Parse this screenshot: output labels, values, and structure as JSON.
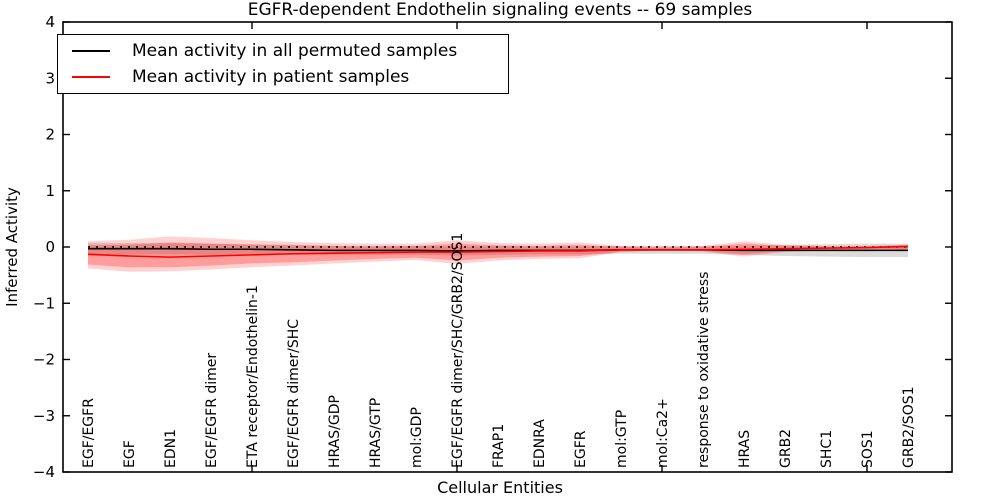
{
  "chart_data": {
    "type": "line",
    "title": "EGFR-dependent Endothelin signaling events -- 69 samples",
    "xlabel": "Cellular Entities",
    "ylabel": "Inferred Activity",
    "ylim": [
      -4,
      4
    ],
    "ytick_values": [
      4,
      3,
      2,
      1,
      0,
      -1,
      -2,
      -3,
      -4
    ],
    "ytick_labels": [
      "4",
      "3",
      "2",
      "1",
      "0",
      "−1",
      "−2",
      "−3",
      "−4"
    ],
    "x_major_tick_indices": [
      4,
      9,
      14,
      19
    ],
    "grid": false,
    "legend_position": "upper-left",
    "background_color": "#ffffff",
    "axis_color": "#000000",
    "categories": [
      "EGF/EGFR",
      "EGF",
      "EDN1",
      "EGF/EGFR dimer",
      "ETA receptor/Endothelin-1",
      "EGF/EGFR dimer/SHC",
      "HRAS/GDP",
      "HRAS/GTP",
      "mol:GDP",
      "EGF/EGFR dimer/SHC/GRB2/SOS1",
      "FRAP1",
      "EDNRA",
      "EGFR",
      "mol:GTP",
      "mol:Ca2+",
      "response to oxidative stress",
      "HRAS",
      "GRB2",
      "SHC1",
      "SOS1",
      "GRB2/SOS1"
    ],
    "series": [
      {
        "name": "Mean activity in all permuted samples",
        "color": "#000000",
        "style": "solid",
        "values": [
          -0.03,
          -0.03,
          -0.03,
          -0.04,
          -0.04,
          -0.05,
          -0.06,
          -0.06,
          -0.06,
          -0.07,
          -0.06,
          -0.06,
          -0.06,
          -0.05,
          -0.05,
          -0.05,
          -0.06,
          -0.06,
          -0.06,
          -0.06,
          -0.06
        ]
      },
      {
        "name": "Mean activity in patient samples",
        "color": "#ff0000",
        "style": "solid",
        "values": [
          -0.13,
          -0.16,
          -0.18,
          -0.16,
          -0.14,
          -0.12,
          -0.11,
          -0.1,
          -0.09,
          -0.09,
          -0.08,
          -0.07,
          -0.07,
          -0.05,
          -0.05,
          -0.05,
          -0.04,
          -0.03,
          -0.02,
          -0.01,
          0.01
        ]
      },
      {
        "name": "zero-reference",
        "color": "#000000",
        "style": "dotted",
        "values": [
          0,
          0,
          0,
          0,
          0,
          0,
          0,
          0,
          0,
          0,
          0,
          0,
          0,
          0,
          0,
          0,
          0,
          0,
          0,
          0,
          0
        ]
      }
    ],
    "bands": [
      {
        "name": "permuted-samples-range",
        "color": "#999999",
        "opacity": 0.35,
        "upper": [
          0.07,
          0.07,
          0.07,
          0.06,
          0.05,
          0.04,
          0.02,
          0.02,
          0.02,
          0.01,
          0.02,
          0.01,
          0.01,
          0.02,
          0.02,
          0.02,
          0.02,
          0.04,
          0.05,
          0.06,
          0.06
        ],
        "lower": [
          -0.13,
          -0.13,
          -0.13,
          -0.14,
          -0.13,
          -0.14,
          -0.14,
          -0.14,
          -0.14,
          -0.15,
          -0.14,
          -0.13,
          -0.13,
          -0.12,
          -0.12,
          -0.12,
          -0.14,
          -0.16,
          -0.17,
          -0.18,
          -0.18
        ]
      },
      {
        "name": "patient-samples-range-outer",
        "color": "#ff0000",
        "opacity": 0.18,
        "upper": [
          0.1,
          0.13,
          0.19,
          0.16,
          0.12,
          0.09,
          0.07,
          0.06,
          0.06,
          0.12,
          0.07,
          0.06,
          0.08,
          0.02,
          0.01,
          0.02,
          0.1,
          0.04,
          0.02,
          0.02,
          0.04
        ],
        "lower": [
          -0.38,
          -0.44,
          -0.43,
          -0.4,
          -0.36,
          -0.33,
          -0.29,
          -0.26,
          -0.23,
          -0.3,
          -0.24,
          -0.21,
          -0.2,
          -0.09,
          -0.07,
          -0.08,
          -0.17,
          -0.09,
          -0.06,
          -0.05,
          -0.06
        ]
      },
      {
        "name": "patient-samples-range-inner",
        "color": "#ff0000",
        "opacity": 0.25,
        "upper": [
          0.03,
          0.04,
          0.08,
          0.06,
          0.04,
          0.03,
          0.02,
          0.01,
          0.02,
          0.06,
          0.03,
          0.02,
          0.04,
          0.0,
          -0.01,
          0.0,
          0.06,
          0.02,
          0.01,
          0.01,
          0.03
        ],
        "lower": [
          -0.31,
          -0.36,
          -0.36,
          -0.33,
          -0.29,
          -0.27,
          -0.24,
          -0.21,
          -0.19,
          -0.24,
          -0.19,
          -0.17,
          -0.16,
          -0.08,
          -0.06,
          -0.07,
          -0.13,
          -0.07,
          -0.05,
          -0.04,
          -0.05
        ]
      }
    ]
  }
}
